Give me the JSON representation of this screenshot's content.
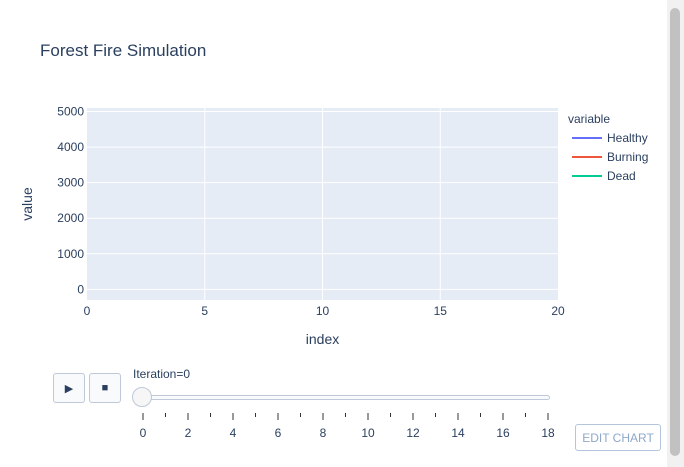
{
  "chart_data": {
    "type": "line",
    "title": "Forest Fire Simulation",
    "xlabel": "index",
    "ylabel": "value",
    "xlim": [
      0,
      20
    ],
    "ylim": [
      -300,
      5100
    ],
    "x_ticks": [
      0,
      5,
      10,
      15,
      20
    ],
    "y_ticks": [
      0,
      1000,
      2000,
      3000,
      4000,
      5000
    ],
    "grid": true,
    "legend_title": "variable",
    "legend_position": "right",
    "series": [
      {
        "name": "Healthy",
        "color": "#636efa",
        "values": []
      },
      {
        "name": "Burning",
        "color": "#ef553b",
        "values": []
      },
      {
        "name": "Dead",
        "color": "#00cc96",
        "values": []
      }
    ]
  },
  "controls": {
    "play_icon": "play-icon",
    "play_glyph": "▶",
    "stop_icon": "stop-icon",
    "stop_glyph": "■",
    "slider_label": "Iteration=0",
    "slider_value": 0,
    "slider_ticks": [
      0,
      2,
      4,
      6,
      8,
      10,
      12,
      14,
      16,
      18
    ],
    "slider_steps": 19
  },
  "edit_chart_label": "EDIT CHART"
}
